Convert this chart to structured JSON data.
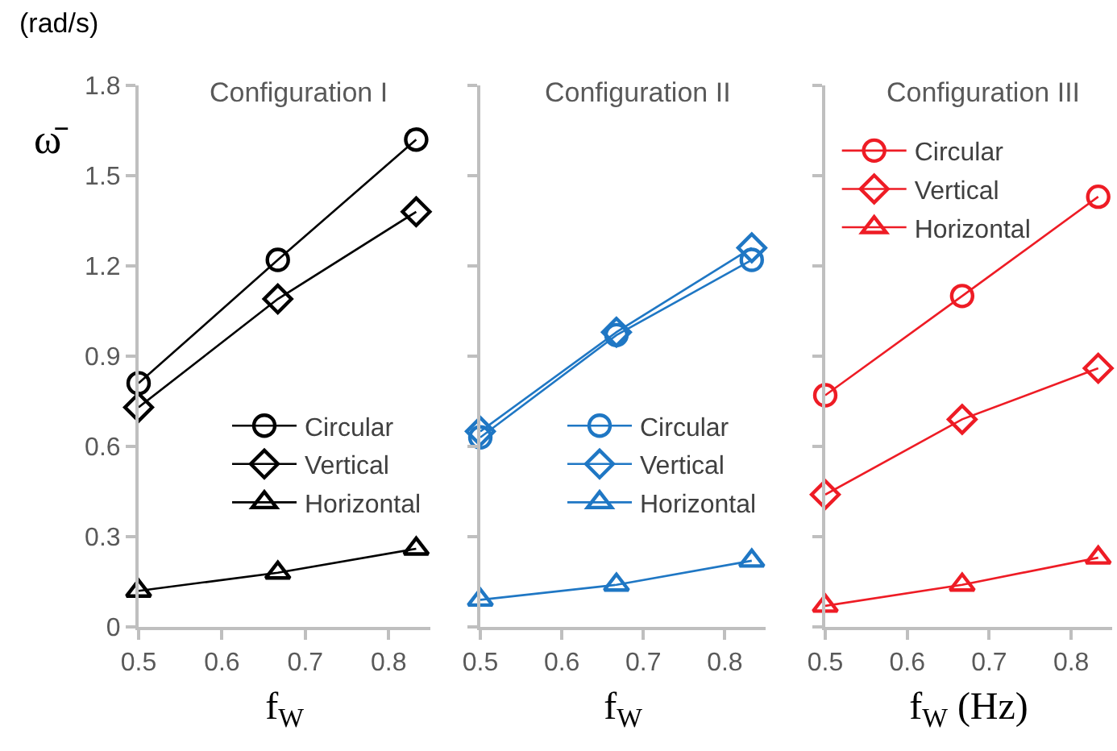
{
  "chart_data": [
    {
      "type": "line",
      "title": "Configuration I",
      "ylabel": "ω̄",
      "xlabel": "f$_{W}$",
      "annotations": [
        "(rad/s)"
      ],
      "x": [
        0.5,
        0.667,
        0.833
      ],
      "xlim": [
        0.5,
        0.85
      ],
      "xticks": [
        0.5,
        0.6,
        0.7,
        0.8
      ],
      "ylim": [
        0,
        1.8
      ],
      "yticks": [
        0,
        0.3,
        0.6,
        0.9,
        1.2,
        1.5,
        1.8
      ],
      "grid": false,
      "legend": "right",
      "line_style": "solid",
      "series": [
        {
          "name": "Circular",
          "color": "#000000",
          "marker": "circle",
          "values": [
            0.81,
            1.22,
            1.62
          ]
        },
        {
          "name": "Vertical",
          "color": "#000000",
          "marker": "diamond",
          "values": [
            0.73,
            1.09,
            1.38
          ]
        },
        {
          "name": "Horizontal",
          "color": "#000000",
          "marker": "triangle",
          "values": [
            0.12,
            0.18,
            0.26
          ]
        }
      ]
    },
    {
      "type": "line",
      "title": "Configuration II",
      "xlabel": "f$_{W}$",
      "x": [
        0.5,
        0.667,
        0.833
      ],
      "xlim": [
        0.5,
        0.85
      ],
      "xticks": [
        0.5,
        0.6,
        0.7,
        0.8
      ],
      "ylim": [
        0,
        1.8
      ],
      "yticks": [
        0,
        0.3,
        0.6,
        0.9,
        1.2,
        1.5,
        1.8
      ],
      "tick_labels": "x",
      "grid": false,
      "legend": "right",
      "line_style": "solid",
      "series": [
        {
          "name": "Circular",
          "color": "#1f77c4",
          "marker": "circle",
          "values": [
            0.63,
            0.97,
            1.22
          ]
        },
        {
          "name": "Vertical",
          "color": "#1f77c4",
          "marker": "diamond",
          "values": [
            0.65,
            0.98,
            1.26
          ]
        },
        {
          "name": "Horizontal",
          "color": "#1f77c4",
          "marker": "triangle",
          "values": [
            0.09,
            0.14,
            0.22
          ]
        }
      ]
    },
    {
      "type": "line",
      "title": "Configuration III",
      "xlabel": "f$_{W}$ (Hz)",
      "x": [
        0.5,
        0.667,
        0.833
      ],
      "xlim": [
        0.5,
        0.85
      ],
      "xticks": [
        0.5,
        0.6,
        0.7,
        0.8
      ],
      "ylim": [
        0,
        1.8
      ],
      "yticks": [
        0,
        0.3,
        0.6,
        0.9,
        1.2,
        1.5,
        1.8
      ],
      "tick_labels": "x",
      "grid": false,
      "legend": "top left",
      "line_style": "solid",
      "series": [
        {
          "name": "Circular",
          "color": "#ee1c25",
          "marker": "circle",
          "values": [
            0.77,
            1.1,
            1.43
          ]
        },
        {
          "name": "Vertical",
          "color": "#ee1c25",
          "marker": "diamond",
          "values": [
            0.44,
            0.69,
            0.86
          ]
        },
        {
          "name": "Horizontal",
          "color": "#ee1c25",
          "marker": "triangle",
          "values": [
            0.07,
            0.14,
            0.23
          ]
        }
      ]
    }
  ]
}
